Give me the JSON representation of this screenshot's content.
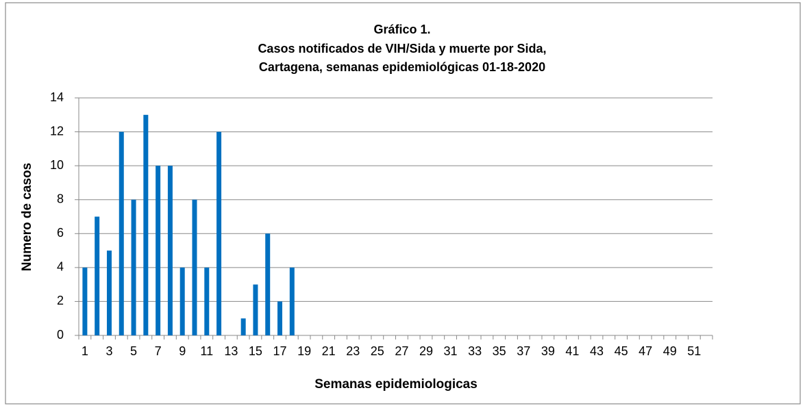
{
  "chart_data": {
    "type": "bar",
    "title": [
      "Gráfico 1.",
      "Casos notificados de VIH/Sida y muerte por Sida,",
      "Cartagena, semanas epidemiológicas 01-18-2020"
    ],
    "x_label": "Semanas epidemiologicas",
    "y_label": "Numero de casos",
    "categories": [
      "1",
      null,
      "3",
      null,
      "5",
      null,
      "7",
      null,
      "9",
      null,
      "11",
      null,
      "13",
      null,
      "15",
      null,
      "17",
      null,
      "19",
      null,
      "21",
      null,
      "23",
      null,
      "25",
      null,
      "27",
      null,
      "29",
      null,
      "31",
      null,
      "33",
      null,
      "35",
      null,
      "37",
      null,
      "39",
      null,
      "41",
      null,
      "43",
      null,
      "45",
      null,
      "47",
      null,
      "49",
      null,
      "51",
      null
    ],
    "values": [
      4,
      7,
      5,
      12,
      8,
      13,
      10,
      10,
      4,
      8,
      4,
      12,
      0,
      1,
      3,
      6,
      2,
      4,
      null,
      null,
      null,
      null,
      null,
      null,
      null,
      null,
      null,
      null,
      null,
      null,
      null,
      null,
      null,
      null,
      null,
      null,
      null,
      null,
      null,
      null,
      null,
      null,
      null,
      null,
      null,
      null,
      null,
      null,
      null,
      null,
      null,
      null
    ],
    "color": "#0070c0",
    "ylim": [
      0,
      14
    ],
    "yticks": [
      0,
      2,
      4,
      6,
      8,
      10,
      12,
      14
    ],
    "grid": true
  }
}
